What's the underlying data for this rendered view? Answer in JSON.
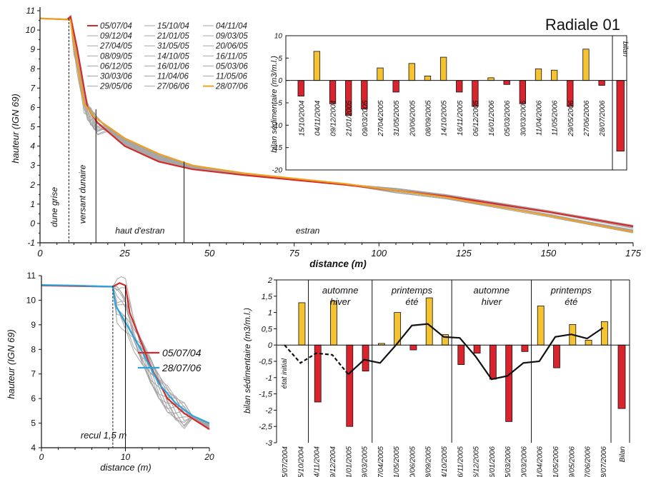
{
  "chart_data": [
    {
      "type": "line",
      "title": "Radiale 01",
      "xlabel": "distance (m)",
      "ylabel": "hauteur (IGN 69)",
      "xlim": [
        0,
        175
      ],
      "ylim": [
        -1,
        11
      ],
      "xticks": [
        "0",
        "25",
        "50",
        "75",
        "100",
        "125",
        "150",
        "175"
      ],
      "yticks": [
        "-1",
        "0",
        "1",
        "2",
        "3",
        "4",
        "5",
        "6",
        "7",
        "8",
        "9",
        "10",
        "11"
      ],
      "zone_labels": [
        "dune grise",
        "versant dunaire",
        "haut d'estran",
        "estran"
      ],
      "zone_bounds": [
        8.5,
        16.5,
        42.5
      ],
      "legend_col1": [
        "05/07/04",
        "09/12/04",
        "27/04/05",
        "08/09/05",
        "06/12/05",
        "30/03/06",
        "29/05/06"
      ],
      "legend_col2": [
        "15/10/04",
        "21/01/05",
        "31/05/05",
        "14/10/05",
        "16/01/06",
        "11/04/06",
        "27/06/06"
      ],
      "legend_col3": [
        "04/11/04",
        "09/03/05",
        "20/06/05",
        "16/11/05",
        "05/03/06",
        "11/05/06",
        "28/07/06"
      ],
      "series": [
        {
          "name": "05/07/04",
          "color": "#d42a2a",
          "points": [
            [
              0,
              10.6
            ],
            [
              8,
              10.55
            ],
            [
              9,
              10.7
            ],
            [
              11,
              9.0
            ],
            [
              14,
              6.0
            ],
            [
              17,
              5.2
            ],
            [
              25,
              4.0
            ],
            [
              35,
              3.2
            ],
            [
              45,
              2.8
            ],
            [
              60,
              2.5
            ],
            [
              90,
              2.0
            ],
            [
              120,
              1.4
            ],
            [
              150,
              0.6
            ],
            [
              175,
              -0.15
            ]
          ]
        },
        {
          "name": "28/07/06",
          "color": "#f0a020",
          "points": [
            [
              0,
              10.6
            ],
            [
              8,
              10.55
            ],
            [
              9,
              10.5
            ],
            [
              10,
              9.3
            ],
            [
              13,
              6.2
            ],
            [
              16,
              5.5
            ],
            [
              25,
              4.4
            ],
            [
              35,
              3.6
            ],
            [
              45,
              3.0
            ],
            [
              60,
              2.6
            ],
            [
              90,
              2.05
            ],
            [
              120,
              1.35
            ],
            [
              150,
              0.4
            ],
            [
              175,
              -0.45
            ]
          ]
        }
      ]
    },
    {
      "type": "bar",
      "title": "",
      "ylabel": "bilan sédimentaire (m3/m.l.)",
      "ylim": [
        -20,
        10
      ],
      "yticks": [
        "10",
        "5",
        "0",
        "-5",
        "-10",
        "-15",
        "-20"
      ],
      "categories": [
        "15/10/2004",
        "04/11/2004",
        "09/12/2004",
        "21/01/2005",
        "09/03/2005",
        "27/04/2005",
        "31/05/2005",
        "20/06/2005",
        "08/09/2005",
        "14/10/2005",
        "16/11/2005",
        "06/12/2005",
        "16/01/2006",
        "05/03/2006",
        "30/03/2006",
        "11/04/2006",
        "11/05/2006",
        "29/05/2006",
        "27/06/2006",
        "28/07/2006"
      ],
      "values": [
        -3.5,
        6.5,
        -5.2,
        -7.8,
        -6.4,
        2.8,
        -2.6,
        3.8,
        1.0,
        5.2,
        -2.6,
        -5.8,
        0.6,
        -0.9,
        -5.2,
        2.6,
        2.3,
        -5.8,
        7.0,
        -1.1
      ],
      "bilan_label": "bilan",
      "bilan_value": -15.8,
      "pos_color": "#f5c231",
      "neg_color": "#d9232d"
    },
    {
      "type": "line",
      "xlabel": "distance (m)",
      "ylabel": "hauteur (IGN 69)",
      "xlim": [
        0,
        20
      ],
      "ylim": [
        4,
        11
      ],
      "xticks": [
        "0",
        "10",
        "20"
      ],
      "yticks": [
        "4",
        "5",
        "6",
        "7",
        "8",
        "9",
        "10",
        "11"
      ],
      "annotation": "recul 1,5 m",
      "recul_bounds": [
        8.5,
        10
      ],
      "series": [
        {
          "name": "05/07/04",
          "color": "#d42a2a",
          "points": [
            [
              0,
              10.6
            ],
            [
              8.5,
              10.55
            ],
            [
              9.3,
              10.7
            ],
            [
              10,
              10.6
            ],
            [
              10.5,
              9.5
            ],
            [
              13,
              7.3
            ],
            [
              15,
              6.0
            ],
            [
              17,
              5.4
            ],
            [
              20,
              4.75
            ]
          ]
        },
        {
          "name": "28/07/06",
          "color": "#2ba3dd",
          "points": [
            [
              0,
              10.62
            ],
            [
              4,
              10.6
            ],
            [
              8.5,
              10.55
            ],
            [
              8.8,
              9.8
            ],
            [
              10,
              9.1
            ],
            [
              12,
              7.9
            ],
            [
              14,
              6.6
            ],
            [
              16,
              5.8
            ],
            [
              18,
              5.3
            ],
            [
              20,
              5.0
            ]
          ]
        }
      ]
    },
    {
      "type": "bar",
      "ylabel": "bilan sédimentaire (m3/m.l.)",
      "ylim": [
        -3,
        2
      ],
      "yticks": [
        "2",
        "1,5",
        "1",
        "0,5",
        "0",
        "-0,5",
        "-1",
        "-1,5",
        "-2",
        "-2,5",
        "-3"
      ],
      "categories": [
        "05/07/2004",
        "15/10/2004",
        "04/11/2004",
        "09/12/2004",
        "21/01/2005",
        "09/03/2005",
        "27/04/2005",
        "31/05/2005",
        "20/06/2005",
        "08/09/2005",
        "14/10/2005",
        "16/11/2005",
        "06/12/2005",
        "16/01/2006",
        "05/03/2006",
        "30/03/2006",
        "11/04/2006",
        "11/05/2006",
        "29/05/2006",
        "27/06/2006",
        "28/07/2006"
      ],
      "values": [
        0,
        1.3,
        -1.75,
        1.35,
        -2.5,
        -0.8,
        0.05,
        1.0,
        -0.15,
        1.45,
        0.32,
        -0.6,
        -0.25,
        -1.05,
        -2.35,
        -0.2,
        1.2,
        -0.7,
        0.63,
        0.15,
        0.72
      ],
      "cumulative": [
        null,
        0,
        -0.55,
        -0.25,
        -0.3,
        -0.9,
        -0.45,
        -0.55,
        0.0,
        0.6,
        0.65,
        0.25,
        0.22,
        -0.35,
        -1.05,
        -0.95,
        -0.55,
        -0.5,
        0.25,
        0.33,
        0.2,
        0.53
      ],
      "period_labels": [
        [
          "automne",
          "hiver"
        ],
        [
          "printemps",
          "été"
        ],
        [
          "automne",
          "hiver"
        ],
        [
          "printemps",
          "été"
        ]
      ],
      "initial_label": "état initial",
      "bilan_label": "Bilan",
      "bilan_value": -1.95,
      "pos_color": "#f5c231",
      "neg_color": "#d9232d"
    }
  ]
}
